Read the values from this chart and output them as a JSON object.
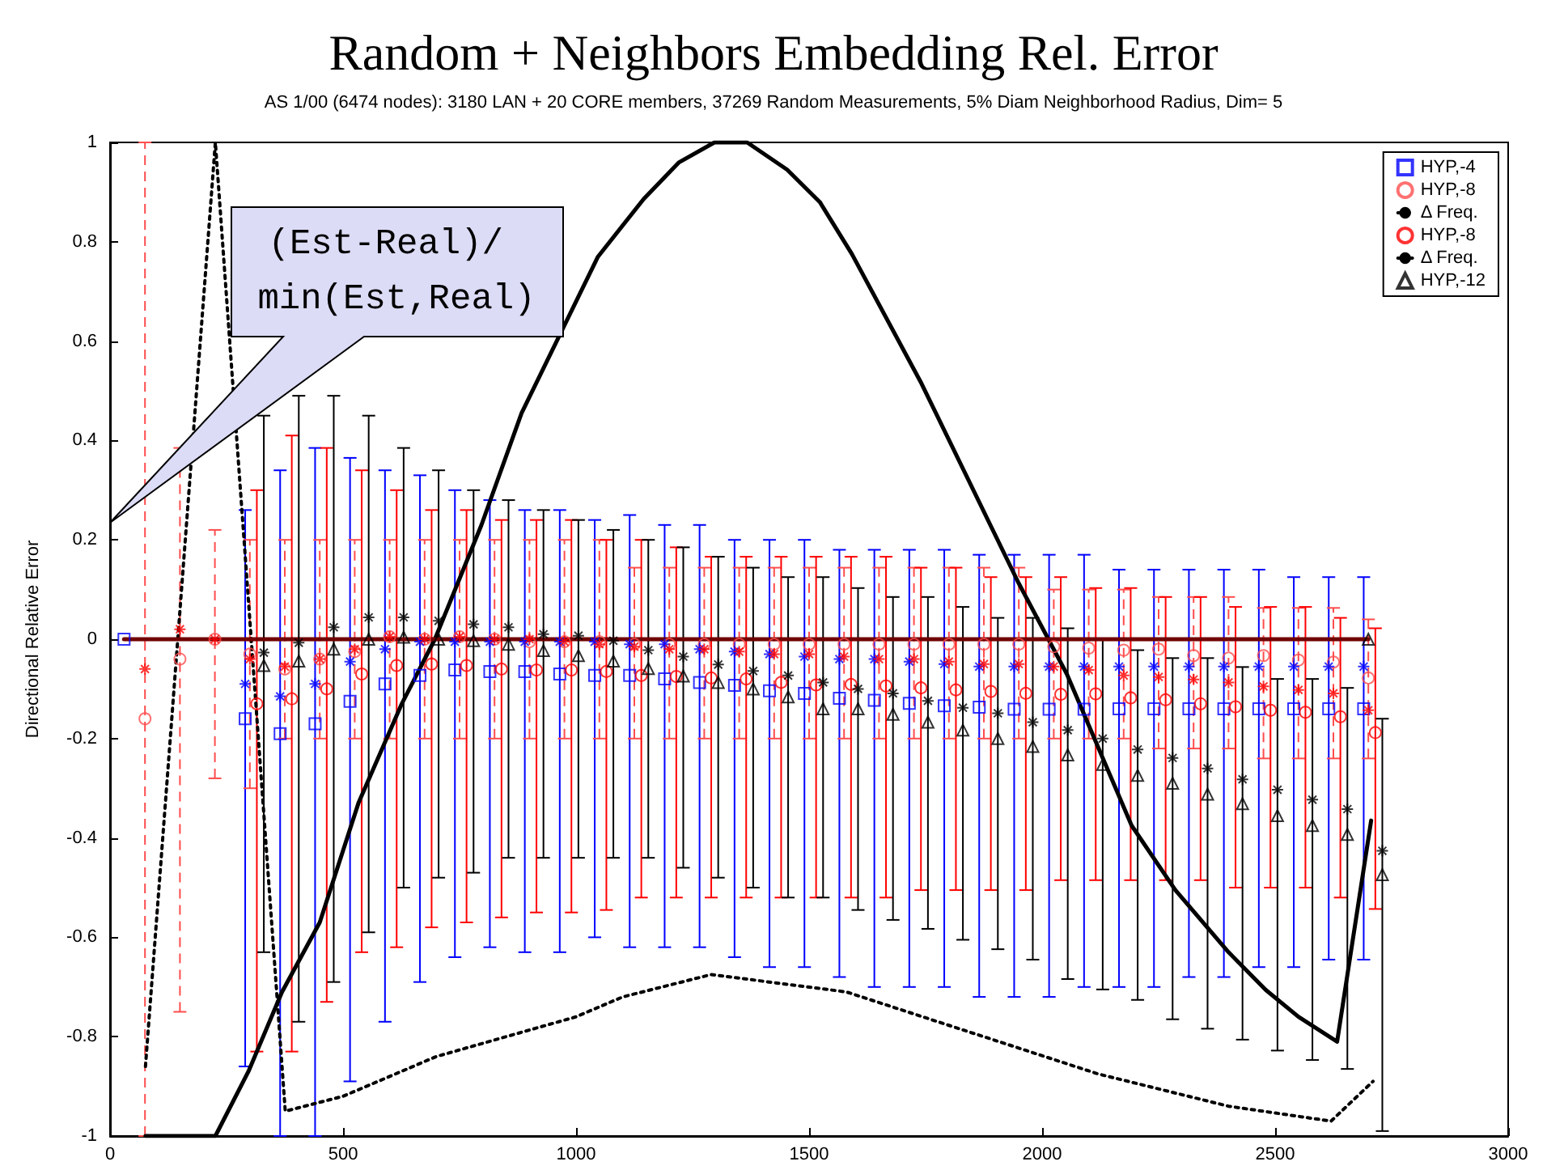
{
  "chart_data": {
    "type": "scatter",
    "title": "Random + Neighbors Embedding Rel. Error",
    "subtitle": "AS 1/00 (6474 nodes): 3180 LAN + 20 CORE members, 37269 Random Measurements, 5% Diam Neighborhood Radius, Dim= 5",
    "ylabel": "Directional Relative Error",
    "annotations": [
      "(Est-Real)/ min(Est,Real)"
    ],
    "xlim": [
      0,
      3000
    ],
    "xticks": [
      0,
      500,
      1000,
      1500,
      2000,
      2500,
      3000
    ],
    "ylim": [
      -1,
      1
    ],
    "yticks": [
      -1,
      -0.8,
      -0.6,
      -0.4,
      -0.2,
      0,
      0.2,
      0.4,
      0.6,
      0.8,
      1
    ],
    "grid": false,
    "legend": "top right",
    "series": [
      {
        "name": "HYP,-4",
        "type": "scatter",
        "color": "#0000ff",
        "marker": "square",
        "line_style": "solid",
        "x": [
          30,
          290,
          365,
          440,
          515,
          590,
          665,
          740,
          815,
          890,
          965,
          1040,
          1115,
          1190,
          1265,
          1340,
          1415,
          1490,
          1565,
          1640,
          1715,
          1790,
          1865,
          1940,
          2015,
          2090,
          2165,
          2240,
          2315,
          2390,
          2465,
          2540,
          2615,
          2690
        ],
        "values": [
          0,
          -0.16,
          -0.19,
          -0.17,
          -0.125,
          -0.09,
          -0.073,
          -0.062,
          -0.065,
          -0.065,
          -0.07,
          -0.073,
          -0.073,
          -0.08,
          -0.087,
          -0.093,
          -0.104,
          -0.109,
          -0.119,
          -0.123,
          -0.129,
          -0.134,
          -0.137,
          -0.141,
          -0.141,
          -0.141,
          -0.14,
          -0.14,
          -0.14,
          -0.14,
          -0.14,
          -0.14,
          -0.14,
          -0.14
        ],
        "errors": [
          null,
          [
            -0.86,
            0.26
          ],
          [
            -1,
            0.34
          ],
          [
            -1,
            0.385
          ],
          [
            -0.89,
            0.365
          ],
          [
            -0.77,
            0.34
          ],
          [
            -0.69,
            0.33
          ],
          [
            -0.64,
            0.3
          ],
          [
            -0.62,
            0.28
          ],
          [
            -0.63,
            0.26
          ],
          [
            -0.63,
            0.26
          ],
          [
            -0.6,
            0.24
          ],
          [
            -0.62,
            0.25
          ],
          [
            -0.62,
            0.23
          ],
          [
            -0.62,
            0.23
          ],
          [
            -0.64,
            0.2
          ],
          [
            -0.66,
            0.2
          ],
          [
            -0.66,
            0.2
          ],
          [
            -0.68,
            0.18
          ],
          [
            -0.7,
            0.18
          ],
          [
            -0.7,
            0.18
          ],
          [
            -0.7,
            0.18
          ],
          [
            -0.72,
            0.17
          ],
          [
            -0.72,
            0.17
          ],
          [
            -0.72,
            0.17
          ],
          [
            -0.7,
            0.17
          ],
          [
            -0.7,
            0.14
          ],
          [
            -0.7,
            0.14
          ],
          [
            -0.68,
            0.14
          ],
          [
            -0.68,
            0.14
          ],
          [
            -0.66,
            0.14
          ],
          [
            -0.66,
            0.125
          ],
          [
            -0.645,
            0.125
          ],
          [
            -0.645,
            0.125
          ]
        ]
      },
      {
        "name": "HYP,-8",
        "type": "scatter",
        "color": "#ff4d4d",
        "marker": "circle",
        "line_style": "dashed",
        "x": [
          75,
          150,
          225,
          300,
          375,
          450,
          525,
          600,
          675,
          750,
          825,
          900,
          975,
          1050,
          1125,
          1200,
          1275,
          1350,
          1425,
          1500,
          1575,
          1650,
          1725,
          1800,
          1875,
          1950,
          2025,
          2100,
          2175,
          2250,
          2325,
          2400,
          2475,
          2550,
          2625,
          2700
        ],
        "values": [
          -0.16,
          -0.04,
          0,
          -0.03,
          -0.06,
          -0.04,
          -0.025,
          0.005,
          0,
          0.005,
          0,
          -0.005,
          -0.005,
          -0.005,
          -0.01,
          -0.01,
          -0.01,
          -0.01,
          -0.01,
          -0.01,
          -0.01,
          -0.01,
          -0.01,
          -0.01,
          -0.01,
          -0.01,
          -0.015,
          -0.018,
          -0.022,
          -0.02,
          -0.033,
          -0.038,
          -0.033,
          -0.042,
          -0.046,
          -0.078
        ],
        "errors": [
          [
            -1,
            1
          ],
          [
            -0.75,
            0.385
          ],
          [
            -0.28,
            0.22
          ],
          [
            -0.3,
            0.2
          ],
          [
            -0.2,
            0.2
          ],
          [
            -0.2,
            0.2
          ],
          [
            -0.2,
            0.2
          ],
          [
            -0.2,
            0.2
          ],
          [
            -0.2,
            0.2
          ],
          [
            -0.2,
            0.2
          ],
          [
            -0.2,
            0.2
          ],
          [
            -0.2,
            0.2
          ],
          [
            -0.2,
            0.2
          ],
          [
            -0.2,
            0.2
          ],
          [
            -0.2,
            0.144
          ],
          [
            -0.2,
            0.144
          ],
          [
            -0.2,
            0.144
          ],
          [
            -0.2,
            0.144
          ],
          [
            -0.2,
            0.144
          ],
          [
            -0.2,
            0.144
          ],
          [
            -0.2,
            0.144
          ],
          [
            -0.2,
            0.144
          ],
          [
            -0.2,
            0.144
          ],
          [
            -0.2,
            0.144
          ],
          [
            -0.2,
            0.144
          ],
          [
            -0.2,
            0.144
          ],
          [
            -0.2,
            0.1
          ],
          [
            -0.2,
            0.1
          ],
          [
            -0.2,
            0.1
          ],
          [
            -0.22,
            0.085
          ],
          [
            -0.22,
            0.085
          ],
          [
            -0.22,
            0.085
          ],
          [
            -0.24,
            0.063
          ],
          [
            -0.24,
            0.063
          ],
          [
            -0.24,
            0.063
          ],
          [
            -0.24,
            0.04
          ]
        ]
      },
      {
        "name": "Δ Freq.",
        "type": "line",
        "color": "#000000",
        "marker": "none",
        "line_style": "dotted",
        "x": [
          76,
          226,
          376,
          500,
          600,
          700,
          850,
          1000,
          1100,
          1290,
          1580,
          2120,
          2400,
          2620,
          2710
        ],
        "values": [
          -0.86,
          1,
          -0.95,
          -0.92,
          -0.88,
          -0.84,
          -0.8,
          -0.76,
          -0.72,
          -0.675,
          -0.71,
          -0.875,
          -0.94,
          -0.97,
          -0.89
        ]
      },
      {
        "name": "HYP,-8",
        "type": "scatter",
        "color": "#ff0000",
        "marker": "circle",
        "line_style": "solid",
        "x": [
          315,
          390,
          465,
          540,
          615,
          690,
          765,
          840,
          915,
          990,
          1065,
          1140,
          1215,
          1290,
          1365,
          1440,
          1515,
          1590,
          1665,
          1740,
          1815,
          1890,
          1965,
          2040,
          2115,
          2190,
          2265,
          2340,
          2415,
          2490,
          2565,
          2640,
          2715
        ],
        "values": [
          -0.13,
          -0.12,
          -0.1,
          -0.07,
          -0.053,
          -0.05,
          -0.053,
          -0.06,
          -0.062,
          -0.062,
          -0.065,
          -0.073,
          -0.075,
          -0.078,
          -0.08,
          -0.087,
          -0.092,
          -0.091,
          -0.094,
          -0.098,
          -0.102,
          -0.105,
          -0.109,
          -0.111,
          -0.11,
          -0.118,
          -0.122,
          -0.13,
          -0.136,
          -0.143,
          -0.147,
          -0.156,
          -0.188
        ],
        "errors": [
          [
            -0.83,
            0.3
          ],
          [
            -0.83,
            0.41
          ],
          [
            -0.73,
            0.385
          ],
          [
            -0.63,
            0.34
          ],
          [
            -0.62,
            0.3
          ],
          [
            -0.58,
            0.26
          ],
          [
            -0.57,
            0.26
          ],
          [
            -0.56,
            0.24
          ],
          [
            -0.55,
            0.24
          ],
          [
            -0.55,
            0.24
          ],
          [
            -0.545,
            0.2
          ],
          [
            -0.52,
            0.2
          ],
          [
            -0.52,
            0.185
          ],
          [
            -0.52,
            0.166
          ],
          [
            -0.52,
            0.166
          ],
          [
            -0.52,
            0.166
          ],
          [
            -0.52,
            0.166
          ],
          [
            -0.52,
            0.166
          ],
          [
            -0.52,
            0.166
          ],
          [
            -0.505,
            0.144
          ],
          [
            -0.505,
            0.144
          ],
          [
            -0.505,
            0.125
          ],
          [
            -0.505,
            0.125
          ],
          [
            -0.485,
            0.125
          ],
          [
            -0.485,
            0.103
          ],
          [
            -0.485,
            0.103
          ],
          [
            -0.485,
            0.085
          ],
          [
            -0.485,
            0.085
          ],
          [
            -0.5,
            0.065
          ],
          [
            -0.5,
            0.065
          ],
          [
            -0.5,
            0.065
          ],
          [
            -0.52,
            0.043
          ],
          [
            -0.543,
            0.022
          ]
        ]
      },
      {
        "name": "Δ Freq.",
        "type": "line",
        "color": "#000000",
        "marker": "none",
        "line_style": "solid",
        "x": [
          76,
          226,
          297,
          369,
          450,
          533,
          626,
          697,
          797,
          883,
          1047,
          1145,
          1221,
          1297,
          1367,
          1453,
          1523,
          1592,
          1741,
          1949,
          2053,
          2192,
          2286,
          2400,
          2480,
          2550,
          2633,
          2706
        ],
        "values": [
          -1,
          -1,
          -0.87,
          -0.71,
          -0.57,
          -0.33,
          -0.13,
          0,
          0.23,
          0.455,
          0.77,
          0.886,
          0.96,
          1,
          1,
          0.945,
          0.88,
          0.775,
          0.515,
          0.114,
          -0.07,
          -0.375,
          -0.505,
          -0.63,
          -0.706,
          -0.76,
          -0.81,
          -0.365
        ]
      },
      {
        "name": "HYP,-12",
        "type": "scatter",
        "color": "#000000",
        "marker": "triangle",
        "line_style": "solid",
        "x": [
          330,
          405,
          480,
          555,
          630,
          705,
          780,
          855,
          930,
          1005,
          1080,
          1155,
          1230,
          1305,
          1380,
          1455,
          1530,
          1605,
          1680,
          1755,
          1830,
          1905,
          1980,
          2055,
          2130,
          2205,
          2280,
          2355,
          2430,
          2505,
          2580,
          2655,
          2700,
          2730
        ],
        "values": [
          -0.053,
          -0.044,
          -0.02,
          0,
          0.004,
          0,
          -0.003,
          -0.01,
          -0.023,
          -0.033,
          -0.044,
          -0.059,
          -0.074,
          -0.087,
          -0.1,
          -0.116,
          -0.14,
          -0.14,
          -0.151,
          -0.167,
          -0.183,
          -0.2,
          -0.216,
          -0.233,
          -0.252,
          -0.274,
          -0.29,
          -0.312,
          -0.331,
          -0.355,
          -0.375,
          -0.393,
          0,
          -0.474
        ],
        "errors": [
          [
            -0.63,
            0.45
          ],
          [
            -0.77,
            0.49
          ],
          [
            -0.69,
            0.49
          ],
          [
            -0.59,
            0.45
          ],
          [
            -0.5,
            0.385
          ],
          [
            -0.48,
            0.34
          ],
          [
            -0.47,
            0.3
          ],
          [
            -0.44,
            0.28
          ],
          [
            -0.44,
            0.26
          ],
          [
            -0.44,
            0.24
          ],
          [
            -0.44,
            0.22
          ],
          [
            -0.44,
            0.2
          ],
          [
            -0.46,
            0.185
          ],
          [
            -0.48,
            0.166
          ],
          [
            -0.5,
            0.144
          ],
          [
            -0.52,
            0.125
          ],
          [
            -0.52,
            0.125
          ],
          [
            -0.545,
            0.103
          ],
          [
            -0.565,
            0.085
          ],
          [
            -0.583,
            0.085
          ],
          [
            -0.605,
            0.065
          ],
          [
            -0.624,
            0.043
          ],
          [
            -0.645,
            0.043
          ],
          [
            -0.684,
            0.022
          ],
          [
            -0.705,
            0
          ],
          [
            -0.726,
            -0.022
          ],
          [
            -0.765,
            -0.038
          ],
          [
            -0.784,
            -0.038
          ],
          [
            -0.806,
            -0.056
          ],
          [
            -0.828,
            -0.08
          ],
          [
            -0.847,
            -0.08
          ],
          [
            -0.865,
            -0.098
          ],
          null,
          [
            -0.99,
            -0.16
          ]
        ]
      },
      {
        "type": "scatter",
        "color": "#0000ff",
        "marker": "cross",
        "x": [
          290,
          365,
          440,
          515,
          590,
          665,
          740,
          815,
          890,
          965,
          1040,
          1115,
          1190,
          1265,
          1340,
          1415,
          1490,
          1565,
          1640,
          1715,
          1790,
          1865,
          1940,
          2015,
          2090,
          2165,
          2240,
          2315,
          2390,
          2465,
          2540,
          2615,
          2690
        ],
        "values": [
          -0.09,
          -0.115,
          -0.09,
          -0.045,
          -0.02,
          -0.005,
          -0.005,
          -0.005,
          -0.005,
          -0.005,
          -0.005,
          -0.01,
          -0.01,
          -0.02,
          -0.025,
          -0.03,
          -0.035,
          -0.04,
          -0.04,
          -0.045,
          -0.05,
          -0.055,
          -0.055,
          -0.055,
          -0.055,
          -0.055,
          -0.055,
          -0.055,
          -0.055,
          -0.055,
          -0.055,
          -0.055,
          -0.055
        ]
      },
      {
        "type": "scatter",
        "color": "#ff0000",
        "marker": "cross",
        "x": [
          75,
          150,
          225,
          300,
          375,
          450,
          525,
          600,
          675,
          750,
          825,
          900,
          975,
          1050,
          1125,
          1200,
          1275,
          1350,
          1425,
          1500,
          1575,
          1650,
          1725,
          1800,
          1875,
          1950,
          2025,
          2100,
          2175,
          2250,
          2325,
          2400,
          2475,
          2550,
          2625,
          2700
        ],
        "values": [
          -0.06,
          0.02,
          0,
          -0.04,
          -0.055,
          -0.04,
          -0.02,
          0.005,
          0,
          0.005,
          0,
          0,
          -0.005,
          -0.01,
          -0.015,
          -0.02,
          -0.02,
          -0.025,
          -0.03,
          -0.03,
          -0.035,
          -0.04,
          -0.04,
          -0.045,
          -0.05,
          -0.05,
          -0.055,
          -0.062,
          -0.073,
          -0.076,
          -0.081,
          -0.087,
          -0.095,
          -0.102,
          -0.109,
          -0.143
        ]
      },
      {
        "type": "scatter",
        "color": "#000000",
        "marker": "cross",
        "x": [
          330,
          405,
          480,
          555,
          630,
          705,
          780,
          855,
          930,
          1005,
          1080,
          1155,
          1230,
          1305,
          1380,
          1455,
          1530,
          1605,
          1680,
          1755,
          1830,
          1905,
          1980,
          2055,
          2130,
          2205,
          2280,
          2355,
          2430,
          2505,
          2580,
          2655,
          2730
        ],
        "values": [
          -0.027,
          -0.007,
          0.024,
          0.044,
          0.044,
          0.037,
          0.03,
          0.024,
          0.01,
          0.007,
          -0.003,
          -0.022,
          -0.035,
          -0.051,
          -0.064,
          -0.073,
          -0.087,
          -0.1,
          -0.109,
          -0.124,
          -0.138,
          -0.149,
          -0.167,
          -0.183,
          -0.2,
          -0.222,
          -0.239,
          -0.26,
          -0.282,
          -0.303,
          -0.323,
          -0.342,
          -0.426
        ]
      },
      {
        "type": "line",
        "color": "#700000",
        "marker": "none",
        "line_style": "solid",
        "x": [
          30,
          2700
        ],
        "values": [
          0,
          0
        ]
      }
    ]
  }
}
